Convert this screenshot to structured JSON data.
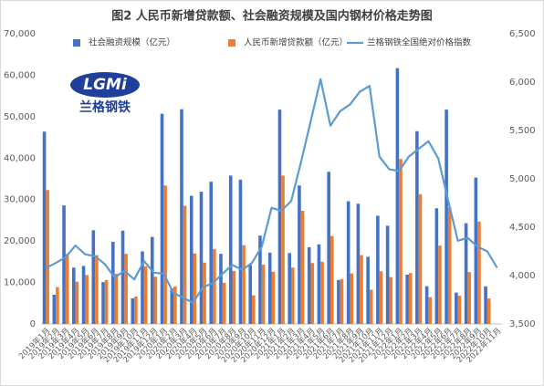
{
  "chart_data": {
    "type": "bar_line",
    "title": "图2 人民币新增贷款额、社会融资规模及国内钢材价格走势图",
    "logo": {
      "mark": "LGMi",
      "name": "兰格钢铁"
    },
    "categories": [
      "2019年1月",
      "2019年2月",
      "2019年3月",
      "2019年4月",
      "2019年5月",
      "2019年6月",
      "2019年7月",
      "2019年8月",
      "2019年9月",
      "2019年10月",
      "2019年11月",
      "2019年12月",
      "2020年1月",
      "2020年2月",
      "2020年3月",
      "2020年4月",
      "2020年5月",
      "2020年6月",
      "2020年7月",
      "2020年8月",
      "2020年9月",
      "2020年10月",
      "2020年11月",
      "2020年12月",
      "2021年1月",
      "2021年2月",
      "2021年3月",
      "2021年4月",
      "2021年5月",
      "2021年6月",
      "2021年7月",
      "2021年8月",
      "2021年9月",
      "2021年10月",
      "2021年11月",
      "2021年12月",
      "2022年1月",
      "2022年2月",
      "2022年3月",
      "2022年4月",
      "2022年5月",
      "2022年6月",
      "2022年7月",
      "2022年8月",
      "2022年9月",
      "2022年10月",
      "2022年11月"
    ],
    "series": [
      {
        "name": "社会融资规模（亿元）",
        "color": "#4472c4",
        "type": "bar",
        "values": [
          46400,
          7030,
          28600,
          13600,
          14000,
          22600,
          10100,
          19800,
          22500,
          6189,
          17500,
          21000,
          50700,
          8554,
          51800,
          30900,
          31900,
          34300,
          16900,
          35800,
          34800,
          14200,
          21300,
          17200,
          51700,
          17100,
          33400,
          18500,
          19200,
          36700,
          10600,
          29600,
          29000,
          16200,
          26100,
          23700,
          61700,
          11900,
          46500,
          9102,
          27900,
          51700,
          7561,
          24300,
          35300,
          9079,
          null
        ]
      },
      {
        "name": "人民币新增贷款额（亿元）",
        "color": "#ed7d31",
        "type": "bar",
        "values": [
          32300,
          8858,
          16900,
          10200,
          11800,
          16600,
          10600,
          12100,
          16900,
          6613,
          13900,
          11400,
          33400,
          9057,
          28500,
          17000,
          14800,
          18100,
          9927,
          12800,
          19000,
          6898,
          14300,
          12600,
          35800,
          13600,
          27300,
          14700,
          15000,
          21200,
          10800,
          12200,
          16600,
          8262,
          12700,
          11300,
          39800,
          12300,
          31300,
          6454,
          18900,
          28100,
          6790,
          12500,
          24700,
          6152,
          null
        ]
      },
      {
        "name": "兰格钢铁全国绝对价格指数",
        "color": "#5b9bd5",
        "type": "line",
        "axis": "y2",
        "values": [
          4080,
          4130,
          4190,
          4310,
          4220,
          4200,
          4120,
          3980,
          4050,
          3960,
          4150,
          4030,
          4020,
          3820,
          3770,
          3720,
          3880,
          3920,
          4020,
          4110,
          4060,
          4130,
          4300,
          4700,
          4670,
          4770,
          5170,
          5600,
          6030,
          5550,
          5700,
          5770,
          5900,
          5960,
          5230,
          5100,
          5080,
          5230,
          5310,
          5390,
          5210,
          4780,
          4360,
          4390,
          4300,
          4250,
          4080
        ]
      }
    ],
    "ylim": [
      0,
      70000
    ],
    "yticks": [
      0,
      {
        "value": 10000,
        "label": "10,000"
      },
      {
        "value": 20000,
        "label": "20,000"
      },
      {
        "value": 30000,
        "label": "30,000"
      },
      {
        "value": 40000,
        "label": "40,000"
      },
      {
        "value": 50000,
        "label": "50,000"
      },
      {
        "value": 60000,
        "label": "60,000"
      },
      {
        "value": 70000,
        "label": "70,000"
      }
    ],
    "y2lim": [
      3500,
      6500
    ],
    "y2ticks": [
      {
        "value": 3500,
        "label": "3,500"
      },
      {
        "value": 4000,
        "label": "4,000"
      },
      {
        "value": 4500,
        "label": "4,500"
      },
      {
        "value": 5000,
        "label": "5,000"
      },
      {
        "value": 5500,
        "label": "5,500"
      },
      {
        "value": 6000,
        "label": "6,000"
      },
      {
        "value": 6500,
        "label": "6,500"
      }
    ],
    "grid": false,
    "legend": "top"
  }
}
